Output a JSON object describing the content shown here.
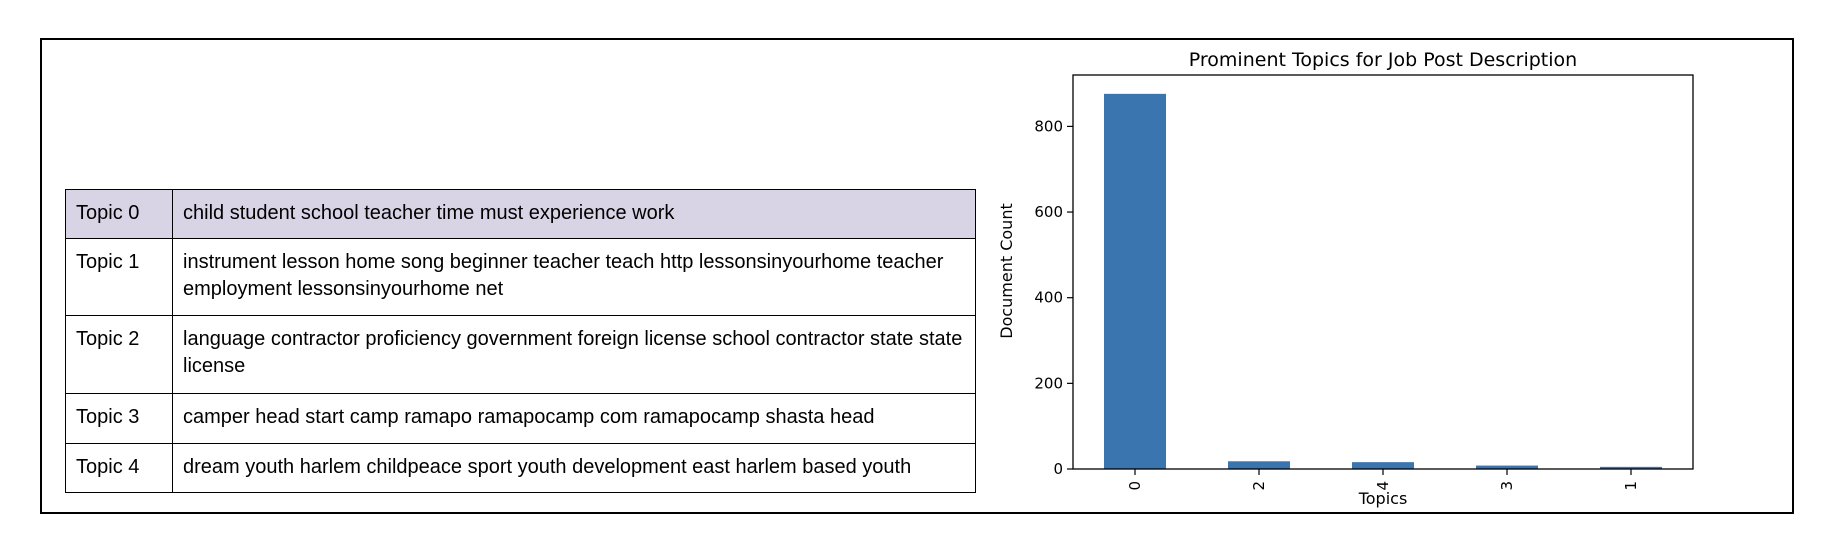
{
  "table": {
    "rows": [
      {
        "id": "Topic 0",
        "words": "child student school teacher time must experience work",
        "highlight": "#d8d4e6"
      },
      {
        "id": "Topic 1",
        "words": "instrument lesson home song beginner teacher teach http lessonsinyourhome teacher employment lessonsinyourhome net"
      },
      {
        "id": "Topic 2",
        "words": "language contractor proficiency government foreign license school contractor state state license"
      },
      {
        "id": "Topic 3",
        "words": "camper head start camp ramapo ramapocamp com ramapocamp shasta head"
      },
      {
        "id": "Topic 4",
        "words": "dream youth harlem childpeace sport youth development east harlem based youth"
      }
    ]
  },
  "chart_data": {
    "type": "bar",
    "title": "Prominent Topics for Job Post Description",
    "xlabel": "Topics",
    "ylabel": "Document Count",
    "categories": [
      "0",
      "2",
      "4",
      "3",
      "1"
    ],
    "values": [
      876,
      18,
      16,
      8,
      5
    ],
    "ylim": [
      0,
      920
    ],
    "yticks": [
      0,
      200,
      400,
      600,
      800
    ],
    "bar_color": "#3b75af",
    "grid": false,
    "legend": "none"
  }
}
